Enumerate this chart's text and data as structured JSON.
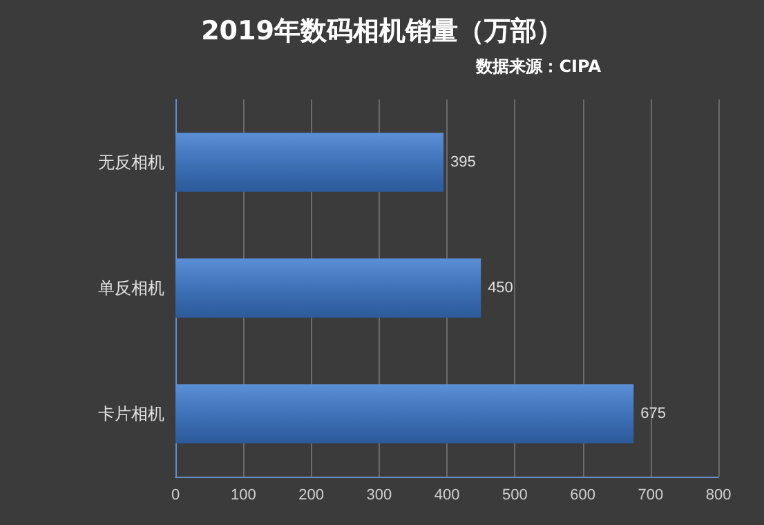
{
  "chart_data": {
    "type": "bar",
    "orientation": "horizontal",
    "title": "2019年数码相机销量（万部）",
    "annotations": [
      "数据来源：CIPA"
    ],
    "categories": [
      "无反相机",
      "单反相机",
      "卡片相机"
    ],
    "values": [
      395,
      450,
      675
    ],
    "color": "#3f72b8",
    "xlim": [
      0,
      800
    ],
    "xticks": [
      0,
      100,
      200,
      300,
      400,
      500,
      600,
      700,
      800
    ],
    "grid": "x",
    "data_labels": true
  }
}
